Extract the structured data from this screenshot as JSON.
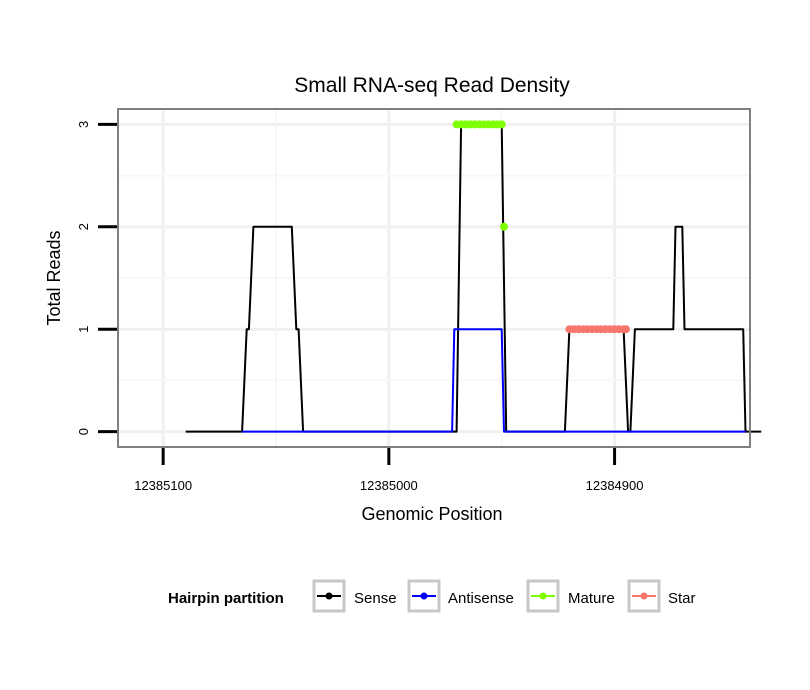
{
  "chart_data": {
    "type": "line",
    "title": "Small RNA-seq Read Density",
    "xlabel": "Genomic Position",
    "ylabel": "Total Reads",
    "x_reversed": true,
    "xlim": [
      12385120,
      12384840
    ],
    "ylim": [
      -0.15,
      3.15
    ],
    "x_ticks": [
      12385100,
      12385000,
      12384900
    ],
    "x_tick_labels": [
      "12385100",
      "12385000",
      "12384900"
    ],
    "y_ticks": [
      0,
      1,
      2,
      3
    ],
    "y_tick_labels": [
      "0",
      "1",
      "2",
      "3"
    ],
    "grid": true,
    "legend": {
      "title": "Hairpin partition",
      "position": "bottom",
      "entries": [
        "Sense",
        "Antisense",
        "Mature",
        "Star"
      ]
    },
    "series": [
      {
        "name": "Sense",
        "color": "#000000",
        "mark": "line",
        "x": [
          12385090,
          12385065,
          12385063,
          12385062,
          12385060,
          12385043,
          12385041,
          12385040,
          12385038,
          12384970,
          12384968,
          12384950,
          12384948,
          12384922,
          12384920,
          12384896,
          12384894,
          12384893,
          12384891,
          12384874,
          12384873,
          12384870,
          12384869,
          12384863,
          12384862,
          12384843,
          12384842,
          12384835
        ],
        "y": [
          0,
          0,
          1,
          1,
          2,
          2,
          1,
          1,
          0,
          0,
          3,
          3,
          0,
          0,
          1,
          1,
          0,
          0,
          1,
          1,
          2,
          2,
          1,
          1,
          1,
          1,
          0,
          0
        ]
      },
      {
        "name": "Antisense",
        "color": "#0000ff",
        "mark": "line",
        "x": [
          12385065,
          12384972,
          12384971,
          12384950,
          12384949,
          12384842
        ],
        "y": [
          0,
          0,
          1,
          1,
          0,
          0
        ]
      },
      {
        "name": "Mature",
        "color": "#7fff00",
        "mark": "points",
        "x": [
          12384970,
          12384968,
          12384966,
          12384964,
          12384962,
          12384960,
          12384958,
          12384956,
          12384954,
          12384952,
          12384950,
          12384949
        ],
        "y": [
          3,
          3,
          3,
          3,
          3,
          3,
          3,
          3,
          3,
          3,
          3,
          2
        ]
      },
      {
        "name": "Star",
        "color": "#f8766d",
        "mark": "points",
        "x": [
          12384920,
          12384918,
          12384916,
          12384914,
          12384912,
          12384910,
          12384908,
          12384906,
          12384904,
          12384902,
          12384900,
          12384898,
          12384896,
          12384895
        ],
        "y": [
          1,
          1,
          1,
          1,
          1,
          1,
          1,
          1,
          1,
          1,
          1,
          1,
          1,
          1
        ]
      }
    ]
  }
}
